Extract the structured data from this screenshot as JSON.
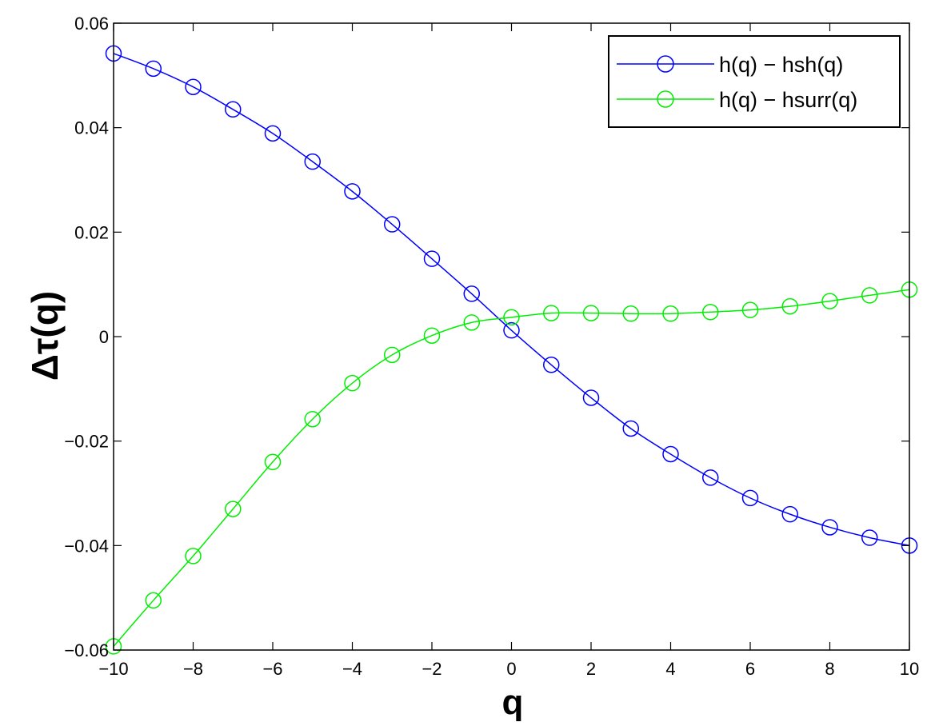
{
  "chart_data": {
    "type": "line",
    "title": "",
    "xlabel": "q",
    "ylabel": "Δτ(q)",
    "xlim": [
      -10,
      10
    ],
    "ylim": [
      -0.06,
      0.06
    ],
    "xticks": [
      -10,
      -8,
      -6,
      -4,
      -2,
      0,
      2,
      4,
      6,
      8,
      10
    ],
    "xtick_labels": [
      "−10",
      "−8",
      "−6",
      "−4",
      "−2",
      "0",
      "2",
      "4",
      "6",
      "8",
      "10"
    ],
    "yticks": [
      -0.06,
      -0.04,
      -0.02,
      0,
      0.02,
      0.04,
      0.06
    ],
    "ytick_labels": [
      "−0.06",
      "−0.04",
      "−0.02",
      "0",
      "0.02",
      "0.04",
      "0.06"
    ],
    "grid": false,
    "legend_position": "top-right",
    "x": [
      -10,
      -9,
      -8,
      -7,
      -6,
      -5,
      -4,
      -3,
      -2,
      -1,
      0,
      1,
      2,
      3,
      4,
      5,
      6,
      7,
      8,
      9,
      10
    ],
    "series": [
      {
        "name": "h(q) − hsh(q)",
        "color": "#0000ff",
        "marker": "circle",
        "values": [
          0.0542,
          0.0513,
          0.0478,
          0.0435,
          0.0389,
          0.0335,
          0.0278,
          0.0215,
          0.0149,
          0.0082,
          0.0012,
          -0.0054,
          -0.0117,
          -0.0176,
          -0.0225,
          -0.027,
          -0.0309,
          -0.034,
          -0.0365,
          -0.0385,
          -0.04
        ]
      },
      {
        "name": "h(q) − hsurr(q)",
        "color": "#00ee00",
        "marker": "circle",
        "values": [
          -0.0593,
          -0.0505,
          -0.042,
          -0.033,
          -0.024,
          -0.0158,
          -0.0089,
          -0.0035,
          0.0002,
          0.0027,
          0.0037,
          0.0045,
          0.0045,
          0.0044,
          0.0044,
          0.0047,
          0.0051,
          0.0058,
          0.0068,
          0.0079,
          0.009
        ]
      }
    ]
  }
}
